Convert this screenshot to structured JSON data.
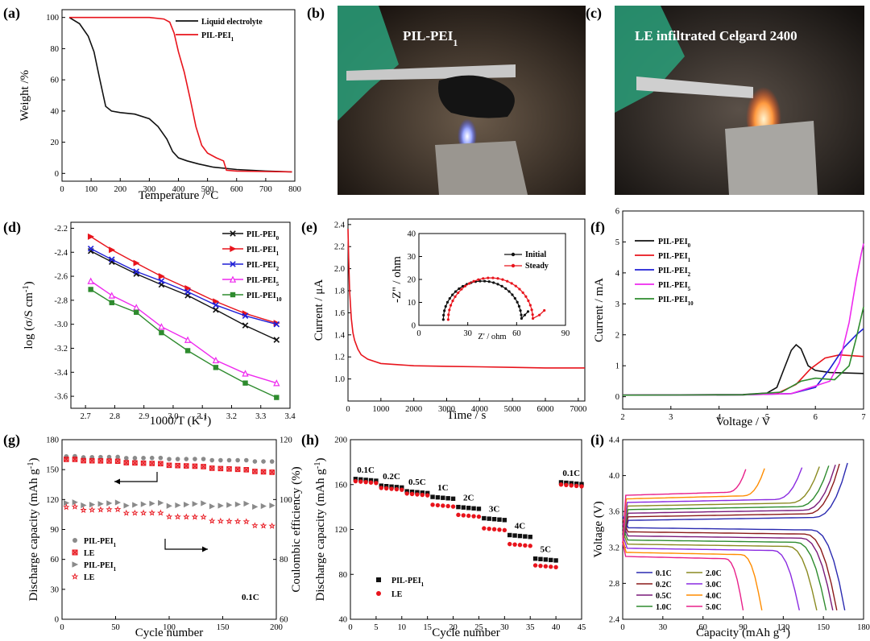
{
  "panels": {
    "a": "(a)",
    "b": "(b)",
    "c": "(c)",
    "d": "(d)",
    "e": "(e)",
    "f": "(f)",
    "g": "(g)",
    "h": "(h)",
    "i": "(i)"
  },
  "photos": {
    "b_title": "PIL-PEI1",
    "c_title": "LE infiltrated Celgard 2400"
  },
  "colors": {
    "black": "#111111",
    "red": "#e8141c",
    "blue": "#1f1fd6",
    "magenta": "#ee2aee",
    "green": "#2e8b2e",
    "gray": "#8a8a8a"
  },
  "chart_data": [
    {
      "id": "a",
      "type": "line",
      "xlabel": "Temperature /°C",
      "ylabel": "Weight /%",
      "xlim": [
        0,
        800
      ],
      "ylim": [
        -5,
        105
      ],
      "xticks": [
        0,
        100,
        200,
        300,
        400,
        500,
        600,
        700,
        800
      ],
      "yticks": [
        0,
        20,
        40,
        60,
        80,
        100
      ],
      "legend": "top-right",
      "series": [
        {
          "name": "Liquid electrolyte",
          "color": "#111111",
          "x": [
            25,
            60,
            90,
            110,
            130,
            150,
            170,
            200,
            250,
            300,
            330,
            360,
            380,
            400,
            430,
            470,
            520,
            600,
            700,
            790
          ],
          "y": [
            100,
            96,
            88,
            78,
            60,
            43,
            40,
            39,
            38,
            35,
            30,
            22,
            14,
            10,
            8,
            6,
            4,
            2.5,
            1.5,
            1
          ]
        },
        {
          "name": "PIL-PEI1",
          "color": "#e8141c",
          "x": [
            25,
            200,
            300,
            350,
            370,
            385,
            400,
            420,
            440,
            460,
            480,
            500,
            530,
            555,
            565,
            600,
            700,
            790
          ],
          "y": [
            100,
            100,
            100,
            99,
            97,
            90,
            78,
            65,
            48,
            30,
            18,
            13,
            10,
            8,
            2,
            1.5,
            1.2,
            1
          ]
        }
      ]
    },
    {
      "id": "d",
      "type": "line",
      "xlabel": "1000/T (K-1)",
      "ylabel": "log (σ/S cm-1)",
      "xlim": [
        2.65,
        3.4
      ],
      "ylim": [
        -3.7,
        -2.15
      ],
      "xticks": [
        2.7,
        2.8,
        2.9,
        3.0,
        3.1,
        3.2,
        3.3,
        3.4
      ],
      "yticks": [
        -2.2,
        -2.4,
        -2.6,
        -2.8,
        -3.0,
        -3.2,
        -3.4,
        -3.6
      ],
      "legend": "top-right",
      "x": [
        2.718,
        2.79,
        2.874,
        2.96,
        3.05,
        3.146,
        3.247,
        3.354
      ],
      "series": [
        {
          "name": "PIL-PEI0",
          "color": "#111111",
          "marker": "x",
          "values": [
            -2.39,
            -2.48,
            -2.58,
            -2.67,
            -2.76,
            -2.88,
            -3.01,
            -3.13
          ]
        },
        {
          "name": "PIL-PEI1",
          "color": "#e8141c",
          "marker": "tri-right",
          "values": [
            -2.27,
            -2.38,
            -2.49,
            -2.6,
            -2.7,
            -2.81,
            -2.91,
            -2.99
          ]
        },
        {
          "name": "PIL-PEI2",
          "color": "#1f1fd6",
          "marker": "x",
          "values": [
            -2.37,
            -2.46,
            -2.56,
            -2.64,
            -2.73,
            -2.84,
            -2.93,
            -3.0
          ]
        },
        {
          "name": "PIL-PEI5",
          "color": "#ee2aee",
          "marker": "tri-up",
          "values": [
            -2.64,
            -2.76,
            -2.86,
            -3.02,
            -3.13,
            -3.3,
            -3.41,
            -3.49
          ]
        },
        {
          "name": "PIL-PEI10",
          "color": "#2e8b2e",
          "marker": "square",
          "values": [
            -2.71,
            -2.82,
            -2.9,
            -3.07,
            -3.22,
            -3.36,
            -3.49,
            -3.61
          ]
        }
      ]
    },
    {
      "id": "e",
      "type": "line",
      "xlabel": "Time / s",
      "ylabel": "Current / μA",
      "xlim": [
        0,
        7200
      ],
      "ylim": [
        0.8,
        2.45
      ],
      "xticks": [
        0,
        1000,
        2000,
        3000,
        4000,
        5000,
        6000,
        7000
      ],
      "yticks": [
        1.0,
        1.2,
        1.4,
        1.6,
        1.8,
        2.0,
        2.2,
        2.4
      ],
      "series": [
        {
          "name": "current",
          "color": "#e8141c",
          "x": [
            0,
            20,
            50,
            100,
            150,
            200,
            300,
            400,
            600,
            800,
            1000,
            1500,
            2000,
            3000,
            4000,
            5000,
            6000,
            7200
          ],
          "y": [
            2.36,
            2.1,
            1.8,
            1.55,
            1.42,
            1.35,
            1.27,
            1.22,
            1.18,
            1.16,
            1.14,
            1.13,
            1.12,
            1.115,
            1.11,
            1.105,
            1.1,
            1.1
          ]
        }
      ],
      "inset": {
        "xlabel": "Z' / ohm",
        "ylabel": "-Z'' / ohm",
        "xlim": [
          0,
          90
        ],
        "ylim": [
          0,
          40
        ],
        "xticks": [
          0,
          30,
          60,
          90
        ],
        "yticks": [
          0,
          10,
          20,
          30,
          40
        ],
        "legend": "top-right",
        "series": [
          {
            "name": "Initial",
            "color": "#111111",
            "center": 39,
            "radius": 24,
            "tail": [
              [
                63,
                3
              ],
              [
                65,
                4.5
              ],
              [
                67,
                6
              ]
            ]
          },
          {
            "name": "Steady",
            "color": "#e8141c",
            "center": 44,
            "radius": 26,
            "tail": [
              [
                70,
                3
              ],
              [
                74,
                4.5
              ],
              [
                77,
                6.5
              ]
            ]
          }
        ]
      }
    },
    {
      "id": "f",
      "type": "line",
      "xlabel": "Voltage / V",
      "ylabel": "Current / mA",
      "xlim": [
        2,
        7
      ],
      "ylim": [
        -0.4,
        6
      ],
      "xticks": [
        2,
        3,
        4,
        5,
        6,
        7
      ],
      "yticks": [
        0,
        1,
        2,
        3,
        4,
        5,
        6
      ],
      "legend": "top-left",
      "series": [
        {
          "name": "PIL-PEI0",
          "color": "#111111",
          "x": [
            2,
            4.5,
            5.0,
            5.2,
            5.35,
            5.5,
            5.6,
            5.7,
            5.85,
            6.0,
            6.3,
            7
          ],
          "y": [
            0.05,
            0.07,
            0.12,
            0.3,
            0.9,
            1.5,
            1.68,
            1.55,
            1.0,
            0.85,
            0.78,
            0.75
          ]
        },
        {
          "name": "PIL-PEI1",
          "color": "#e8141c",
          "x": [
            2,
            4.5,
            5.2,
            5.6,
            5.9,
            6.2,
            6.5,
            7
          ],
          "y": [
            0.05,
            0.06,
            0.1,
            0.4,
            0.9,
            1.25,
            1.35,
            1.3
          ]
        },
        {
          "name": "PIL-PEI2",
          "color": "#1f1fd6",
          "x": [
            2,
            4.5,
            5.5,
            6.0,
            6.3,
            6.6,
            6.85,
            7
          ],
          "y": [
            0.05,
            0.06,
            0.1,
            0.3,
            0.9,
            1.6,
            2.0,
            2.2
          ]
        },
        {
          "name": "PIL-PEI5",
          "color": "#ee2aee",
          "x": [
            2,
            4.5,
            5.5,
            6.0,
            6.3,
            6.5,
            6.7,
            6.85,
            6.95,
            7
          ],
          "y": [
            0.05,
            0.06,
            0.1,
            0.35,
            0.5,
            1.1,
            2.4,
            3.8,
            4.6,
            4.95
          ]
        },
        {
          "name": "PIL-PEI10",
          "color": "#2e8b2e",
          "x": [
            2,
            4.5,
            5.3,
            5.7,
            6.0,
            6.4,
            6.7,
            6.85,
            7
          ],
          "y": [
            0.05,
            0.06,
            0.15,
            0.5,
            0.6,
            0.55,
            1.0,
            1.9,
            2.9
          ]
        }
      ]
    },
    {
      "id": "g",
      "type": "scatter",
      "xlabel": "Cycle number",
      "ylabel": "Discharge capacity (mAh g-1)",
      "y2label": "Coulombic efficiency (%)",
      "annotation": "0.1C",
      "xlim": [
        0,
        200
      ],
      "ylim": [
        0,
        180
      ],
      "y2lim": [
        60,
        120
      ],
      "xticks": [
        0,
        50,
        100,
        150,
        200
      ],
      "yticks": [
        0,
        30,
        60,
        90,
        120,
        150,
        180
      ],
      "y2ticks": [
        60,
        80,
        100,
        120
      ],
      "legend": "bottom-left",
      "series": [
        {
          "name": "PIL-PEI1",
          "axis": "left",
          "color": "#8a8a8a",
          "marker": "circle",
          "start": 163,
          "end": 158
        },
        {
          "name": "LE",
          "axis": "left",
          "color": "#e8141c",
          "marker": "xsquare",
          "start": 160,
          "end": 147
        },
        {
          "name": "PIL-PEI1",
          "axis": "right",
          "color": "#8a8a8a",
          "marker": "tri-right",
          "start": 98.6,
          "end": 98.0
        },
        {
          "name": "LE",
          "axis": "right",
          "color": "#e8141c",
          "marker": "star",
          "start": 97.2,
          "end": 91.0
        }
      ]
    },
    {
      "id": "h",
      "type": "scatter",
      "xlabel": "Cycle number",
      "ylabel": "Discharge capacity (mAh g-1)",
      "xlim": [
        0,
        45
      ],
      "ylim": [
        40,
        200
      ],
      "xticks": [
        0,
        5,
        10,
        15,
        20,
        25,
        30,
        35,
        40,
        45
      ],
      "yticks": [
        40,
        80,
        120,
        160,
        200
      ],
      "legend": "bottom-left",
      "rates": [
        "0.1C",
        "0.2C",
        "0.5C",
        "1C",
        "2C",
        "3C",
        "4C",
        "5C",
        "0.1C"
      ],
      "series": [
        {
          "name": "PIL-PEI1",
          "color": "#111111",
          "marker": "square",
          "values": [
            165,
            159,
            154,
            149,
            140,
            130,
            115,
            94,
            162
          ]
        },
        {
          "name": "LE",
          "color": "#e8141c",
          "marker": "circle",
          "values": [
            163,
            157,
            152,
            142,
            133,
            121,
            107,
            88,
            160
          ]
        }
      ]
    },
    {
      "id": "i",
      "type": "line",
      "xlabel": "Capacity (mAh g-1)",
      "ylabel": "Voltage (V)",
      "xlim": [
        0,
        180
      ],
      "ylim": [
        2.4,
        4.4
      ],
      "xticks": [
        0,
        30,
        60,
        90,
        120,
        150,
        180
      ],
      "yticks": [
        2.4,
        2.8,
        3.2,
        3.6,
        4.0,
        4.4
      ],
      "legend": "bottom-left",
      "series": [
        {
          "name": "0.1C",
          "color": "#2a2ab0",
          "cap": 166
        },
        {
          "name": "0.2C",
          "color": "#8b1a1a",
          "cap": 160
        },
        {
          "name": "0.5C",
          "color": "#7a1a7a",
          "cap": 157
        },
        {
          "name": "1.0C",
          "color": "#2e8b2e",
          "cap": 152
        },
        {
          "name": "2.0C",
          "color": "#8a8a20",
          "cap": 145
        },
        {
          "name": "3.0C",
          "color": "#8a2ae0",
          "cap": 132
        },
        {
          "name": "4.0C",
          "color": "#ff8c00",
          "cap": 104
        },
        {
          "name": "5.0C",
          "color": "#e8208a",
          "cap": 90
        }
      ]
    }
  ]
}
